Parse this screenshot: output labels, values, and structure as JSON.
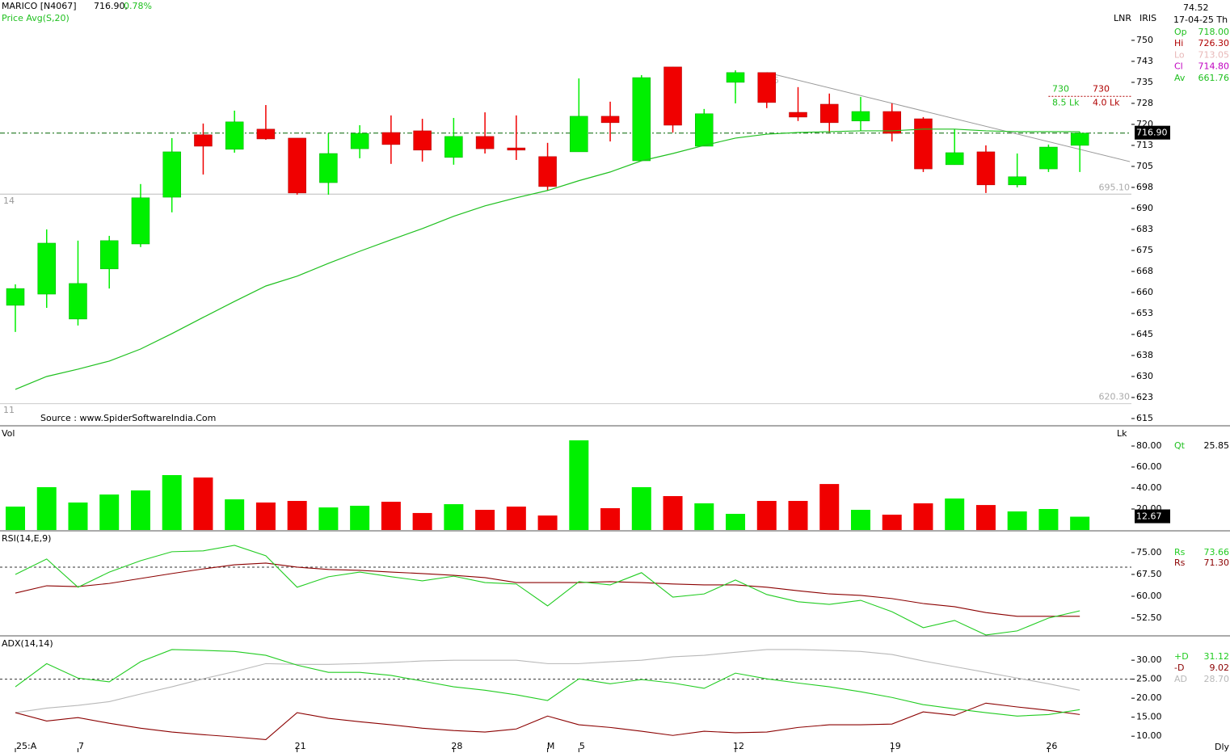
{
  "chart_data": [
    {
      "type": "candlestick",
      "header": {
        "symbol": "MARICO [N4067]",
        "price": "716.90,",
        "change": "0.78%"
      },
      "open": [
        655.4,
        659.4,
        650.5,
        668.4,
        677.3,
        694.0,
        716.3,
        711.1,
        718.3,
        715.1,
        699.2,
        711.3,
        717.1,
        717.7,
        708.2,
        715.7,
        711.6,
        708.5,
        710.2,
        722.9,
        707.0,
        740.5,
        712.2,
        735.0,
        738.5,
        724.3,
        727.2,
        721.2,
        724.6,
        722.0,
        705.6,
        710.2,
        698.4,
        704.1,
        712.5
      ],
      "high": [
        662.9,
        682.5,
        678.5,
        680.2,
        698.7,
        715.1,
        720.3,
        724.9,
        726.9,
        715.1,
        716.8,
        719.7,
        723.2,
        722.0,
        722.3,
        724.3,
        723.2,
        713.4,
        736.4,
        728.1,
        737.6,
        740.5,
        725.5,
        739.3,
        738.5,
        733.3,
        731.0,
        729.8,
        727.5,
        722.6,
        718.3,
        712.5,
        709.6,
        712.8,
        717.3
      ],
      "low": [
        645.9,
        654.5,
        648.2,
        661.4,
        676.2,
        688.6,
        702.1,
        709.9,
        714.5,
        694.9,
        694.9,
        707.9,
        705.9,
        706.7,
        705.6,
        709.6,
        707.3,
        696.4,
        710.2,
        713.9,
        707.0,
        717.1,
        712.2,
        727.5,
        725.8,
        721.2,
        717.1,
        717.7,
        713.9,
        703.0,
        705.6,
        695.5,
        697.5,
        703.0,
        703.0
      ],
      "close": [
        661.4,
        677.6,
        663.2,
        678.5,
        693.8,
        710.2,
        712.2,
        720.9,
        714.8,
        695.5,
        709.6,
        716.8,
        712.8,
        710.8,
        715.7,
        711.3,
        710.8,
        697.8,
        722.9,
        720.6,
        736.7,
        719.7,
        723.8,
        738.5,
        727.8,
        722.6,
        720.6,
        724.6,
        716.8,
        704.1,
        709.9,
        698.4,
        701.3,
        711.9,
        716.9
      ],
      "up_color": "#00f000",
      "down_color": "#f00000",
      "overlay": {
        "name": "Price  Avg(S,20)",
        "color": "#1fc01f",
        "values": [
          625.4,
          630.0,
          632.6,
          635.5,
          639.8,
          645.3,
          651.1,
          656.8,
          662.3,
          665.8,
          670.4,
          674.7,
          678.8,
          682.8,
          687.2,
          690.9,
          693.8,
          696.4,
          699.9,
          703.0,
          707.0,
          709.6,
          712.5,
          715.1,
          716.5,
          717.1,
          717.4,
          717.7,
          717.7,
          718.3,
          718.3,
          717.7,
          717.4,
          717.4,
          717.4
        ]
      },
      "ylim": [
        612.4,
        764.4
      ],
      "yticks": [
        750,
        {
          "value": 742.5,
          "label": "743"
        },
        735,
        {
          "value": 727.5,
          "label": "728"
        },
        720,
        {
          "value": 712.5,
          "label": "713"
        },
        705,
        {
          "value": 697.5,
          "label": "698"
        },
        690,
        {
          "value": 682.5,
          "label": "683"
        },
        675,
        {
          "value": 667.5,
          "label": "668"
        },
        660,
        {
          "value": 652.5,
          "label": "653"
        },
        645,
        {
          "value": 637.5,
          "label": "638"
        },
        630,
        {
          "value": 622.5,
          "label": "623"
        },
        615
      ],
      "last_price": {
        "value": 716.9,
        "label": "716.90"
      },
      "hlines": [
        {
          "value": 695.1,
          "label": "695.10"
        },
        {
          "value": 620.3,
          "label": "620.30"
        }
      ],
      "trendline": {
        "x": [
          24,
          35.6
        ],
        "y": [
          738.5,
          706.7
        ]
      },
      "target": {
        "value": 730,
        "x": 33,
        "labels": [
          "730",
          "730",
          "8.5 Lk",
          "4.0 Lk"
        ]
      },
      "annotations": [
        "14",
        "11",
        "15"
      ],
      "source": "Source : www.SpiderSoftwareIndia.Com",
      "toolbar": [
        "LNR",
        "IRIS"
      ],
      "readout": {
        "top": "74.52",
        "date": "17-04-25 Th",
        "rows": [
          {
            "name": "Op",
            "value": "718.00",
            "color": "#1fc01f"
          },
          {
            "name": "Hi",
            "value": "726.30",
            "color": "#b00000"
          },
          {
            "name": "Lo",
            "value": "713.05",
            "color": "#e8b8b8"
          },
          {
            "name": "Cl",
            "value": "714.80",
            "color": "#c000c0"
          },
          {
            "name": "Av",
            "value": "661.76",
            "color": "#1fc01f"
          }
        ]
      }
    },
    {
      "type": "bar",
      "title": "Vol",
      "unit": "Lk",
      "values": [
        22.3,
        40.8,
        26.2,
        33.8,
        37.7,
        52.3,
        50,
        29.2,
        26.2,
        27.7,
        21.5,
        23.1,
        26.9,
        16.2,
        24.6,
        19.2,
        22.3,
        13.8,
        85.4,
        20.8,
        40.8,
        32.3,
        25.4,
        15.4,
        27.7,
        27.7,
        43.8,
        19.2,
        14.6,
        25.4,
        30,
        23.8,
        17.7,
        20,
        12.67
      ],
      "ylim": [
        0,
        98.5
      ],
      "yticks": [
        {
          "value": 80,
          "label": "80.00"
        },
        {
          "value": 60,
          "label": "60.00"
        },
        {
          "value": 40,
          "label": "40.00"
        },
        {
          "value": 20,
          "label": "20.00"
        }
      ],
      "readout": {
        "name": "Qt",
        "value": "25.85"
      }
    },
    {
      "type": "line",
      "title": "RSI(14,E,9)",
      "series": [
        {
          "name": "Rs",
          "color": "#22cc22",
          "readout": "73.66",
          "values": [
            67.5,
            72.8,
            63.1,
            68.3,
            72.2,
            75.3,
            75.6,
            77.5,
            73.9,
            63.1,
            66.7,
            68.3,
            66.7,
            65.3,
            66.9,
            64.7,
            64.2,
            56.7,
            65,
            63.9,
            68.1,
            59.7,
            60.8,
            65.6,
            60.6,
            58.1,
            57.2,
            58.6,
            54.7,
            49.2,
            51.7,
            46.7,
            48.1,
            52.5,
            55
          ]
        },
        {
          "name": "Rs",
          "color": "#8b0000",
          "readout": "71.30",
          "values": [
            61.1,
            63.6,
            63.3,
            64.4,
            66.1,
            67.8,
            69.4,
            70.8,
            71.4,
            70,
            69.2,
            68.9,
            68.3,
            67.8,
            67.2,
            66.4,
            64.7,
            64.7,
            64.7,
            65,
            64.7,
            64.2,
            63.9,
            63.9,
            63.1,
            61.9,
            60.8,
            60.3,
            59.2,
            57.5,
            56.4,
            54.4,
            53.1,
            53.1,
            53.1
          ]
        }
      ],
      "ylim": [
        46.4,
        82.2
      ],
      "yticks": [
        {
          "value": 75,
          "label": "75.00"
        },
        {
          "value": 67.5,
          "label": "67.50"
        },
        {
          "value": 60,
          "label": "60.00"
        },
        {
          "value": 52.5,
          "label": "52.50"
        }
      ],
      "ref_line": 70
    },
    {
      "type": "line",
      "title": "ADX(14,14)",
      "series": [
        {
          "name": "+D",
          "color": "#22cc22",
          "readout": "31.12",
          "values": [
            23.0,
            29.1,
            25.3,
            24.3,
            29.6,
            32.8,
            32.6,
            32.3,
            31.3,
            28.7,
            26.8,
            26.8,
            26.0,
            24.5,
            23.0,
            22.1,
            20.9,
            19.4,
            25.1,
            23.8,
            24.9,
            24.0,
            22.6,
            26.6,
            25.1,
            24.0,
            23.0,
            21.7,
            20.2,
            18.3,
            17.2,
            16.2,
            15.3,
            15.7,
            17.0
          ]
        },
        {
          "name": "-D",
          "color": "#8b0000",
          "readout": "9.02",
          "values": [
            16.2,
            14.0,
            14.9,
            13.4,
            12.1,
            11.1,
            10.4,
            9.8,
            9.1,
            16.2,
            14.7,
            13.8,
            13.0,
            12.1,
            11.5,
            11.1,
            11.9,
            15.3,
            13.0,
            12.3,
            11.3,
            10.2,
            11.3,
            10.9,
            11.1,
            12.3,
            13.0,
            13.0,
            13.2,
            16.4,
            15.5,
            18.7,
            17.7,
            16.8,
            15.7
          ]
        },
        {
          "name": "AD",
          "color": "#b8b8b8",
          "readout": "28.70",
          "values": [
            16.2,
            17.4,
            18.1,
            19.1,
            21.1,
            23.0,
            25.1,
            27.0,
            29.1,
            28.9,
            28.9,
            29.1,
            29.4,
            29.8,
            30.0,
            30.0,
            30.0,
            29.1,
            29.1,
            29.6,
            30.0,
            30.9,
            31.3,
            32.1,
            32.8,
            32.8,
            32.6,
            32.3,
            31.5,
            29.8,
            28.3,
            26.8,
            25.3,
            23.8,
            22.1
          ]
        }
      ],
      "ylim": [
        6.0,
        36.2
      ],
      "yticks": [
        {
          "value": 30,
          "label": "30.00"
        },
        {
          "value": 25,
          "label": "25.00"
        },
        {
          "value": 20,
          "label": "20.00"
        },
        {
          "value": 15,
          "label": "15.00"
        },
        {
          "value": 10,
          "label": "10.00"
        }
      ],
      "ref_line": 25,
      "categories": [
        "25:A",
        null,
        "7",
        null,
        null,
        null,
        null,
        null,
        null,
        "21",
        null,
        null,
        null,
        null,
        "28",
        null,
        null,
        "M",
        "5",
        null,
        null,
        null,
        null,
        "12",
        null,
        null,
        null,
        null,
        "19",
        null,
        null,
        null,
        null,
        "26",
        null
      ],
      "period": "Dly"
    }
  ]
}
